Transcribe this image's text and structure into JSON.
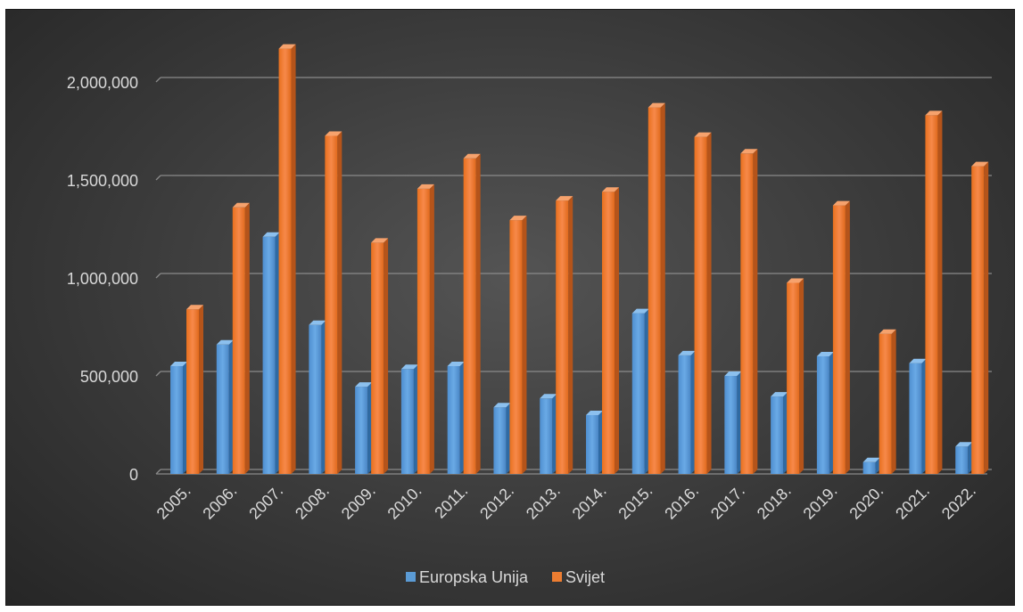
{
  "chart_data": {
    "type": "bar",
    "title": "",
    "xlabel": "",
    "ylabel": "",
    "categories": [
      "2005.",
      "2006.",
      "2007.",
      "2008.",
      "2009.",
      "2010.",
      "2011.",
      "2012.",
      "2013.",
      "2014.",
      "2015.",
      "2016.",
      "2017.",
      "2018.",
      "2019.",
      "2020.",
      "2021.",
      "2022."
    ],
    "series": [
      {
        "name": "Europska Unija",
        "color": "#5b9bd5",
        "values": [
          550000,
          660000,
          1210000,
          760000,
          445000,
          535000,
          550000,
          340000,
          385000,
          300000,
          820000,
          605000,
          500000,
          395000,
          600000,
          60000,
          565000,
          140000
        ]
      },
      {
        "name": "Svijet",
        "color": "#ed7d31",
        "values": [
          840000,
          1360000,
          2170000,
          1725000,
          1180000,
          1455000,
          1610000,
          1295000,
          1395000,
          1440000,
          1870000,
          1720000,
          1635000,
          975000,
          1370000,
          715000,
          1830000,
          1570000
        ]
      }
    ],
    "ylim": [
      0,
      2000000
    ],
    "yticks": [
      0,
      500000,
      1000000,
      1500000,
      2000000
    ],
    "ytick_labels": [
      "0",
      "500,000",
      "1,000,000",
      "1,500,000",
      "2,000,000"
    ],
    "grid": true,
    "legend_position": "bottom",
    "background": "#404040"
  }
}
